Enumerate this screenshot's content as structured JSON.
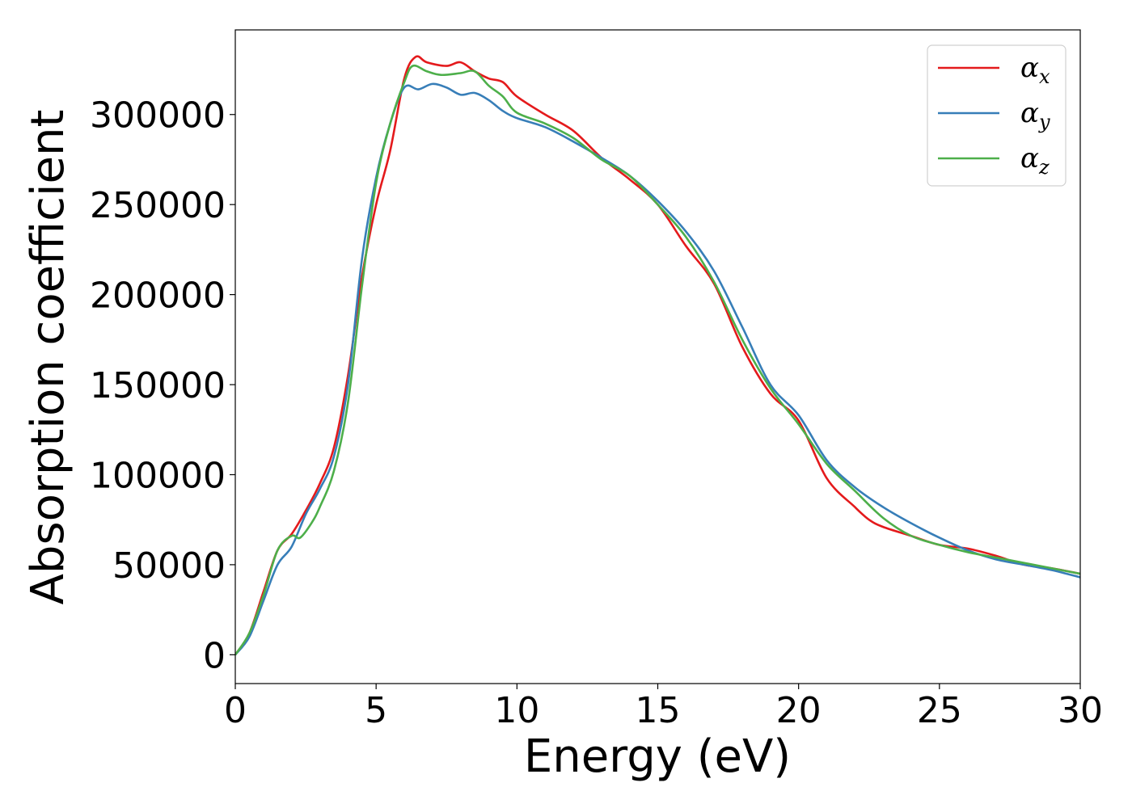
{
  "chart_data": {
    "type": "line",
    "xlabel": "Energy (eV)",
    "ylabel": "Absorption coefficient",
    "xlim": [
      0,
      30
    ],
    "ylim": [
      -16000,
      347000
    ],
    "xticks": [
      0,
      5,
      10,
      15,
      20,
      25,
      30
    ],
    "yticks": [
      0,
      50000,
      100000,
      150000,
      200000,
      250000,
      300000
    ],
    "grid": false,
    "legend_position": "top-right",
    "series": [
      {
        "name": "α_x",
        "symbol": "α",
        "subscript": "x",
        "color": "#e41a1c",
        "x": [
          0,
          0.5,
          1,
          1.5,
          2,
          2.5,
          3,
          3.5,
          4,
          4.5,
          5,
          5.5,
          6,
          6.4,
          6.8,
          7.5,
          8,
          8.5,
          9,
          9.5,
          10,
          11,
          12,
          13,
          14,
          15,
          16,
          17,
          18,
          19,
          20,
          21,
          22,
          22.5,
          23,
          24,
          25,
          26,
          27,
          28,
          29,
          30
        ],
        "y": [
          0,
          12000,
          35000,
          58000,
          67000,
          80000,
          95000,
          115000,
          155000,
          210000,
          250000,
          280000,
          320000,
          332000,
          329000,
          327000,
          329000,
          324000,
          320000,
          318000,
          310000,
          300000,
          291000,
          276000,
          264000,
          250000,
          227000,
          206000,
          171000,
          145000,
          130000,
          98000,
          82000,
          75000,
          71000,
          66000,
          61000,
          59000,
          55000,
          50000,
          48000,
          45000
        ]
      },
      {
        "name": "α_y",
        "symbol": "α",
        "subscript": "y",
        "color": "#377eb8",
        "x": [
          0,
          0.5,
          1,
          1.5,
          2,
          2.5,
          3,
          3.5,
          4,
          4.5,
          5,
          5.5,
          6,
          6.5,
          7,
          7.5,
          8,
          8.5,
          9,
          9.5,
          10,
          11,
          12,
          13,
          14,
          15,
          16,
          17,
          18,
          19,
          20,
          21,
          22,
          23,
          24,
          25,
          26,
          27,
          28,
          29,
          30
        ],
        "y": [
          0,
          10000,
          30000,
          50000,
          60000,
          78000,
          92000,
          110000,
          150000,
          220000,
          265000,
          295000,
          315000,
          314000,
          317000,
          315000,
          311000,
          312000,
          308000,
          302000,
          298000,
          293000,
          285000,
          276000,
          266000,
          252000,
          235000,
          213000,
          182000,
          150000,
          133000,
          108000,
          93000,
          82000,
          73000,
          65000,
          58000,
          53000,
          50000,
          47000,
          43000
        ]
      },
      {
        "name": "α_z",
        "symbol": "α",
        "subscript": "z",
        "color": "#4daf4a",
        "x": [
          0,
          0.5,
          1,
          1.5,
          2,
          2.3,
          2.7,
          3,
          3.5,
          4,
          4.5,
          5,
          5.5,
          6,
          6.3,
          6.8,
          7.3,
          8,
          8.5,
          9,
          9.5,
          10,
          11,
          12,
          13,
          14,
          15,
          16,
          17,
          18,
          19,
          20,
          21,
          22,
          23,
          24,
          25,
          26,
          27,
          28,
          29,
          30
        ],
        "y": [
          0,
          12000,
          33000,
          58000,
          66000,
          65000,
          73000,
          82000,
          102000,
          140000,
          205000,
          262000,
          295000,
          318000,
          327000,
          324000,
          322000,
          323000,
          324000,
          316000,
          310000,
          301000,
          295000,
          287000,
          275000,
          266000,
          250000,
          232000,
          207000,
          175000,
          148000,
          128000,
          106000,
          91000,
          76000,
          66000,
          61000,
          57000,
          54000,
          51000,
          48000,
          45000
        ]
      }
    ]
  }
}
